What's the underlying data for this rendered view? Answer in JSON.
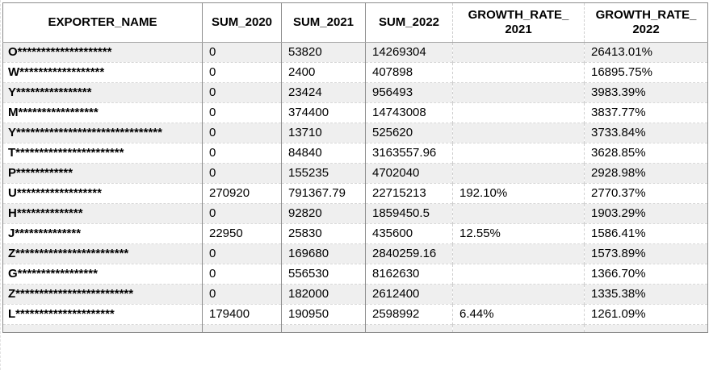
{
  "colors": {
    "stripe": "#efefef",
    "grid_solid": "#8c8c8c",
    "grid_dashed": "#d8d8d8",
    "header_rule": "#a6a6a6",
    "text": "#000000",
    "background": "#ffffff"
  },
  "table": {
    "columns": [
      {
        "id": "exporter_name",
        "label": "EXPORTER_NAME"
      },
      {
        "id": "sum_2020",
        "label": "SUM_2020"
      },
      {
        "id": "sum_2021",
        "label": "SUM_2021"
      },
      {
        "id": "sum_2022",
        "label": "SUM_2022"
      },
      {
        "id": "growth_rate_2021",
        "label": "GROWTH_RATE_2021",
        "label_lines": [
          "GROWTH_RATE_",
          "2021"
        ]
      },
      {
        "id": "growth_rate_2022",
        "label": "GROWTH_RATE_2022",
        "label_lines": [
          "GROWTH_RATE_",
          "2022"
        ]
      }
    ],
    "rows": [
      [
        "O********************",
        "0",
        "53820",
        "14269304",
        "",
        "26413.01%"
      ],
      [
        "W******************",
        "0",
        "2400",
        "407898",
        "",
        "16895.75%"
      ],
      [
        "Y****************",
        "0",
        "23424",
        "956493",
        "",
        "3983.39%"
      ],
      [
        "M*****************",
        "0",
        "374400",
        "14743008",
        "",
        "3837.77%"
      ],
      [
        "Y*******************************",
        "0",
        "13710",
        "525620",
        "",
        "3733.84%"
      ],
      [
        "T***********************",
        "0",
        "84840",
        "3163557.96",
        "",
        "3628.85%"
      ],
      [
        "P************",
        "0",
        "155235",
        "4702040",
        "",
        "2928.98%"
      ],
      [
        "U******************",
        "270920",
        "791367.79",
        "22715213",
        "192.10%",
        "2770.37%"
      ],
      [
        "H**************",
        "0",
        "92820",
        "1859450.5",
        "",
        "1903.29%"
      ],
      [
        "J**************",
        "22950",
        "25830",
        "435600",
        "12.55%",
        "1586.41%"
      ],
      [
        "Z************************",
        "0",
        "169680",
        "2840259.16",
        "",
        "1573.89%"
      ],
      [
        "G*****************",
        "0",
        "556530",
        "8162630",
        "",
        "1366.70%"
      ],
      [
        "Z*************************",
        "0",
        "182000",
        "2612400",
        "",
        "1335.38%"
      ],
      [
        "L*********************",
        "179400",
        "190950",
        "2598992",
        "6.44%",
        "1261.09%"
      ]
    ]
  }
}
